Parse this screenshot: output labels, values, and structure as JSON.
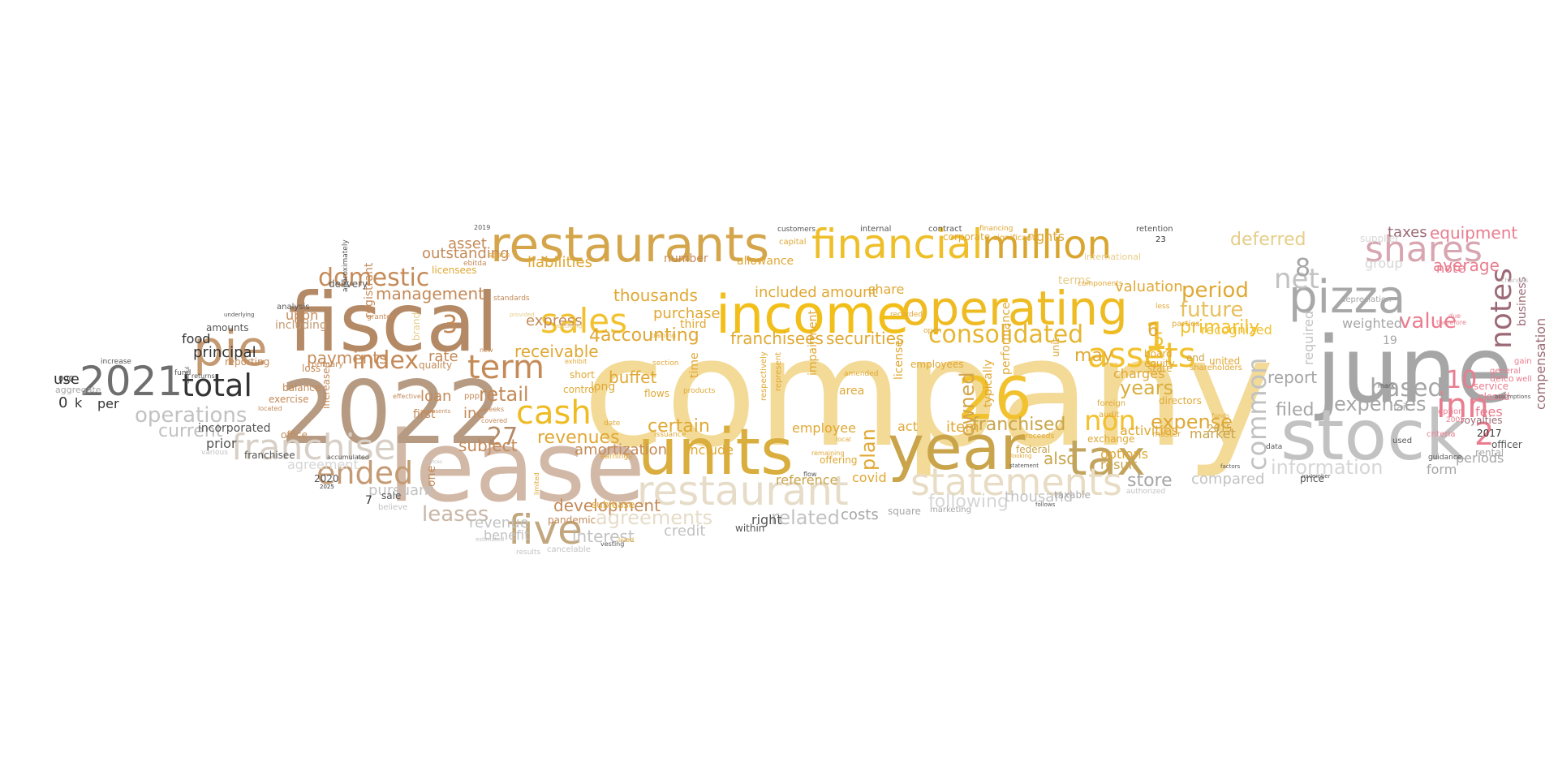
{
  "palette": {
    "background": "#ffffff",
    "gold": "#f2c12e",
    "light_gold": "#f3da96",
    "mustard": "#d4a63a",
    "tan": "#c9a27a",
    "brown": "#b48a66",
    "beige": "#e6dcc8",
    "gray": "#a6a6a6",
    "dark": "#333333",
    "pink": "#e97d8f",
    "mauve": "#9b6a76"
  },
  "words": [
    {
      "text": "company",
      "color": "#f3da96"
    },
    {
      "text": "lease",
      "color": "#d2b8a6"
    },
    {
      "text": "2022",
      "color": "#b69a82"
    },
    {
      "text": "fiscal",
      "color": "#b48a66"
    },
    {
      "text": "income",
      "color": "#f2bf1a"
    },
    {
      "text": "june",
      "color": "#a6a6a6"
    },
    {
      "text": "stock",
      "color": "#c2c2c2"
    },
    {
      "text": "units",
      "color": "#d9ae3e"
    },
    {
      "text": "year",
      "color": "#c9a44a"
    },
    {
      "text": "restaurants",
      "color": "#d4a54a"
    },
    {
      "text": "financial",
      "color": "#efbf2a"
    },
    {
      "text": "million",
      "color": "#d9a52e"
    },
    {
      "text": "operating",
      "color": "#efbb22"
    },
    {
      "text": "restaurant",
      "color": "#e6dcc8"
    },
    {
      "text": "pizza",
      "color": "#a8a8a8"
    },
    {
      "text": "tax",
      "color": "#c3a45e"
    },
    {
      "text": "26",
      "color": "#f2c12e"
    },
    {
      "text": "statements",
      "color": "#e8dcc4"
    },
    {
      "text": "pie",
      "color": "#c49a72"
    },
    {
      "text": "franchise",
      "color": "#d8d0c6"
    },
    {
      "text": "2021",
      "color": "#6e6e6e"
    },
    {
      "text": "five",
      "color": "#c2a77e"
    },
    {
      "text": "shares",
      "color": "#d7a6b0"
    },
    {
      "text": "cash",
      "color": "#efbb22"
    },
    {
      "text": "sales",
      "color": "#f2c12e"
    },
    {
      "text": "assets",
      "color": "#f2c12e"
    },
    {
      "text": "consolidated",
      "color": "#e6b630"
    },
    {
      "text": "total",
      "color": "#333333"
    },
    {
      "text": "term",
      "color": "#c48a58"
    },
    {
      "text": "ended",
      "color": "#c49a72"
    },
    {
      "text": "domestic",
      "color": "#c48a58"
    },
    {
      "text": "index",
      "color": "#c48a58"
    },
    {
      "text": "inn",
      "color": "#e97d8f"
    },
    {
      "text": "notes",
      "color": "#9b6a76"
    },
    {
      "text": "net",
      "color": "#c2c2c2"
    },
    {
      "text": "deferred",
      "color": "#e6cd8a"
    },
    {
      "text": "operations",
      "color": "#c2c2c2"
    },
    {
      "text": "leases",
      "color": "#c9b6a6"
    },
    {
      "text": "revenues",
      "color": "#e0a834"
    },
    {
      "text": "period",
      "color": "#e0a834"
    },
    {
      "text": "future",
      "color": "#e8c060"
    },
    {
      "text": "primarily",
      "color": "#f2c12e"
    },
    {
      "text": "common",
      "color": "#c2c2c2"
    },
    {
      "text": "information",
      "color": "#d6d6d6"
    },
    {
      "text": "expenses",
      "color": "#a6a6a6"
    },
    {
      "text": "value",
      "color": "#e97d8f"
    },
    {
      "text": "based",
      "color": "#a6a6a6"
    },
    {
      "text": "equipment",
      "color": "#e97d8f"
    },
    {
      "text": "average",
      "color": "#e97d8f"
    },
    {
      "text": "expense",
      "color": "#e0a834"
    },
    {
      "text": "years",
      "color": "#d9ae3e"
    },
    {
      "text": "non",
      "color": "#f2c12e"
    },
    {
      "text": "filed",
      "color": "#a6a6a6"
    },
    {
      "text": "report",
      "color": "#a6a6a6"
    },
    {
      "text": "owned",
      "color": "#d4a54a"
    },
    {
      "text": "franchised",
      "color": "#c9a44a"
    },
    {
      "text": "agreements",
      "color": "#e6dcc8"
    },
    {
      "text": "accounting",
      "color": "#e0a834"
    },
    {
      "text": "thousands",
      "color": "#e0a834"
    },
    {
      "text": "certain",
      "color": "#e0a834"
    },
    {
      "text": "management",
      "color": "#c48a58"
    },
    {
      "text": "payments",
      "color": "#c48a58"
    },
    {
      "text": "current",
      "color": "#c2c2c2"
    },
    {
      "text": "retail",
      "color": "#c48a58"
    },
    {
      "text": "27",
      "color": "#b48a66"
    },
    {
      "text": "1",
      "color": "#f2c12e"
    },
    {
      "text": "2",
      "color": "#e97d8f"
    },
    {
      "text": "3",
      "color": "#c48a58"
    },
    {
      "text": "4",
      "color": "#e0a834"
    },
    {
      "text": "5",
      "color": "#f2c12e"
    },
    {
      "text": "6",
      "color": "#e0a834"
    },
    {
      "text": "8",
      "color": "#a6a6a6"
    },
    {
      "text": "10",
      "color": "#e97d8f"
    },
    {
      "text": "securities",
      "color": "#e0a834"
    },
    {
      "text": "franchisees",
      "color": "#e0a834"
    },
    {
      "text": "may",
      "color": "#e0a834"
    },
    {
      "text": "store",
      "color": "#a6a6a6"
    },
    {
      "text": "compared",
      "color": "#c2c2c2"
    },
    {
      "text": "following",
      "color": "#d6d6d6"
    },
    {
      "text": "thousand",
      "color": "#c2c2c2"
    },
    {
      "text": "related",
      "color": "#c2c2c2"
    },
    {
      "text": "costs",
      "color": "#a6a6a6"
    },
    {
      "text": "plan",
      "color": "#e0a834"
    },
    {
      "text": "interest",
      "color": "#c2c2c2"
    },
    {
      "text": "credit",
      "color": "#c2c2c2"
    },
    {
      "text": "development",
      "color": "#c48a58"
    },
    {
      "text": "amortization",
      "color": "#c48a58"
    },
    {
      "text": "subject",
      "color": "#c48a58"
    },
    {
      "text": "receivable",
      "color": "#e0a834"
    },
    {
      "text": "buffet",
      "color": "#e0a834"
    },
    {
      "text": "outstanding",
      "color": "#c48a58"
    },
    {
      "text": "asset",
      "color": "#c48a58"
    },
    {
      "text": "liabilities",
      "color": "#e0a834"
    },
    {
      "text": "rate",
      "color": "#c48a58"
    },
    {
      "text": "loan",
      "color": "#c48a58"
    },
    {
      "text": "inc",
      "color": "#c48a58"
    },
    {
      "text": "express",
      "color": "#c48a58"
    },
    {
      "text": "purchase",
      "color": "#e0a834"
    },
    {
      "text": "included",
      "color": "#e0a834"
    },
    {
      "text": "amount",
      "color": "#e0a834"
    },
    {
      "text": "share",
      "color": "#e0a834"
    },
    {
      "text": "recognized",
      "color": "#f2c12e"
    },
    {
      "text": "valuation",
      "color": "#e0a834"
    },
    {
      "text": "charges",
      "color": "#e0a834"
    },
    {
      "text": "activities",
      "color": "#e0a834"
    },
    {
      "text": "options",
      "color": "#e0a834"
    },
    {
      "text": "result",
      "color": "#c9a44a"
    },
    {
      "text": "also",
      "color": "#c9a44a"
    },
    {
      "text": "market",
      "color": "#c9a44a"
    },
    {
      "text": "rights",
      "color": "#e0a834"
    },
    {
      "text": "terms",
      "color": "#e6cd8a"
    },
    {
      "text": "item",
      "color": "#e0a834"
    },
    {
      "text": "act",
      "color": "#e0a834"
    },
    {
      "text": "employee",
      "color": "#e0a834"
    },
    {
      "text": "reference",
      "color": "#c9a44a"
    },
    {
      "text": "covid",
      "color": "#e0a834"
    },
    {
      "text": "include",
      "color": "#e0a834"
    },
    {
      "text": "right",
      "color": "#555555"
    },
    {
      "text": "agreement",
      "color": "#d6d6d6"
    },
    {
      "text": "pursuant",
      "color": "#c2c2c2"
    },
    {
      "text": "revenue",
      "color": "#c2c2c2"
    },
    {
      "text": "benefit",
      "color": "#c2c2c2"
    },
    {
      "text": "taxes",
      "color": "#9b6a76"
    },
    {
      "text": "group",
      "color": "#d6d6d6"
    },
    {
      "text": "weighted",
      "color": "#a6a6a6"
    },
    {
      "text": "note",
      "color": "#e97d8f"
    },
    {
      "text": "fees",
      "color": "#e97d8f"
    },
    {
      "text": "form",
      "color": "#a6a6a6"
    },
    {
      "text": "periods",
      "color": "#a6a6a6"
    },
    {
      "text": "compensation",
      "color": "#9b6a76"
    },
    {
      "text": "royalties",
      "color": "#9b6a76"
    },
    {
      "text": "rental",
      "color": "#a6a6a6"
    },
    {
      "text": "closed",
      "color": "#e97d8f"
    },
    {
      "text": "service",
      "color": "#e97d8f"
    },
    {
      "text": "2017",
      "color": "#333333"
    },
    {
      "text": "upon",
      "color": "#c48a58"
    },
    {
      "text": "including",
      "color": "#c49a72"
    },
    {
      "text": "principal",
      "color": "#333333"
    },
    {
      "text": "food",
      "color": "#333333"
    },
    {
      "text": "use",
      "color": "#333333"
    },
    {
      "text": "per",
      "color": "#333333"
    },
    {
      "text": "0",
      "color": "#333333"
    },
    {
      "text": "k",
      "color": "#333333"
    },
    {
      "text": "prior",
      "color": "#555555"
    },
    {
      "text": "incorporated",
      "color": "#555555"
    },
    {
      "text": "exercise",
      "color": "#c48a58"
    },
    {
      "text": "registrant",
      "color": "#c48a58"
    },
    {
      "text": "delivery",
      "color": "#555555"
    },
    {
      "text": "amounts",
      "color": "#555555"
    },
    {
      "text": "analysis",
      "color": "#555555"
    },
    {
      "text": "franchisee",
      "color": "#555555"
    },
    {
      "text": "office",
      "color": "#c48a58"
    },
    {
      "text": "2020",
      "color": "#555555"
    },
    {
      "text": "sale",
      "color": "#555555"
    },
    {
      "text": "7",
      "color": "#333333"
    },
    {
      "text": "number",
      "color": "#c48a58"
    },
    {
      "text": "allowance",
      "color": "#e0a834"
    },
    {
      "text": "licensees",
      "color": "#e0a834"
    },
    {
      "text": "supplier",
      "color": "#d6d6d6"
    },
    {
      "text": "price",
      "color": "#555555"
    },
    {
      "text": "taxable",
      "color": "#a6a6a6"
    },
    {
      "text": "sublease",
      "color": "#e0a834"
    },
    {
      "text": "pandemic",
      "color": "#c48a58"
    },
    {
      "text": "short",
      "color": "#e0a834"
    },
    {
      "text": "long",
      "color": "#e0a834"
    },
    {
      "text": "first",
      "color": "#c48a58"
    },
    {
      "text": "one",
      "color": "#c48a58"
    },
    {
      "text": "quality",
      "color": "#c48a58"
    },
    {
      "text": "brand",
      "color": "#e6cd8a"
    },
    {
      "text": "reporting",
      "color": "#c48a58"
    },
    {
      "text": "balance",
      "color": "#c48a58"
    },
    {
      "text": "loss",
      "color": "#c48a58"
    },
    {
      "text": "primary",
      "color": "#c48a58"
    },
    {
      "text": "increased",
      "color": "#c48a58"
    },
    {
      "text": "federal",
      "color": "#c9a44a"
    },
    {
      "text": "equity",
      "color": "#e0a834"
    },
    {
      "text": "board",
      "color": "#e0a834"
    },
    {
      "text": "directors",
      "color": "#e0a834"
    },
    {
      "text": "state",
      "color": "#e0a834"
    },
    {
      "text": "united",
      "color": "#e0a834"
    },
    {
      "text": "end",
      "color": "#c9a44a"
    },
    {
      "text": "2015",
      "color": "#c9a44a"
    },
    {
      "text": "shareholders",
      "color": "#e0a834"
    },
    {
      "text": "exchange",
      "color": "#e0a834"
    },
    {
      "text": "performance",
      "color": "#e0a834"
    },
    {
      "text": "license",
      "color": "#e0a834"
    },
    {
      "text": "impairment",
      "color": "#e0a834"
    },
    {
      "text": "employees",
      "color": "#e0a834"
    },
    {
      "text": "area",
      "color": "#e0a834"
    },
    {
      "text": "time",
      "color": "#e0a834"
    },
    {
      "text": "within",
      "color": "#555555"
    },
    {
      "text": "typically",
      "color": "#e0a834"
    },
    {
      "text": "unit",
      "color": "#e0a834"
    },
    {
      "text": "control",
      "color": "#e0a834"
    },
    {
      "text": "flows",
      "color": "#e0a834"
    },
    {
      "text": "square",
      "color": "#a6a6a6"
    },
    {
      "text": "marketing",
      "color": "#a6a6a6"
    },
    {
      "text": "offering",
      "color": "#e0a834"
    },
    {
      "text": "third",
      "color": "#e0a834"
    },
    {
      "text": "financing",
      "color": "#e0a834"
    },
    {
      "text": "retention",
      "color": "#555555"
    },
    {
      "text": "corporate",
      "color": "#e0a834"
    },
    {
      "text": "significant",
      "color": "#e0a834"
    },
    {
      "text": "internal",
      "color": "#555555"
    },
    {
      "text": "contract",
      "color": "#555555"
    },
    {
      "text": "customers",
      "color": "#555555"
    },
    {
      "text": "capital",
      "color": "#e0a834"
    },
    {
      "text": "international",
      "color": "#e6cd8a"
    },
    {
      "text": "ppp",
      "color": "#c48a58"
    },
    {
      "text": "000",
      "color": "#333333"
    },
    {
      "text": "increase",
      "color": "#555555"
    },
    {
      "text": "fund",
      "color": "#555555"
    },
    {
      "text": "returns",
      "color": "#555555"
    },
    {
      "text": "aggregate",
      "color": "#a6a6a6"
    },
    {
      "text": "guidance",
      "color": "#555555"
    },
    {
      "text": "officer",
      "color": "#555555"
    },
    {
      "text": "delco",
      "color": "#e97d8f"
    },
    {
      "text": "general",
      "color": "#e97d8f"
    },
    {
      "text": "gain",
      "color": "#e97d8f"
    },
    {
      "text": "well",
      "color": "#e97d8f"
    },
    {
      "text": "business",
      "color": "#9b6a76"
    },
    {
      "text": "required",
      "color": "#c2c2c2"
    },
    {
      "text": "depreciation",
      "color": "#a6a6a6"
    },
    {
      "text": "criteria",
      "color": "#e97d8f"
    },
    {
      "text": "option",
      "color": "#e97d8f"
    },
    {
      "text": "used",
      "color": "#555555"
    },
    {
      "text": "19",
      "color": "#a6a6a6"
    },
    {
      "text": "23",
      "color": "#333333"
    },
    {
      "text": "cancelable",
      "color": "#c2c2c2"
    },
    {
      "text": "results",
      "color": "#c2c2c2"
    },
    {
      "text": "vesting",
      "color": "#555555"
    },
    {
      "text": "believe",
      "color": "#c2c2c2"
    },
    {
      "text": "authorized",
      "color": "#c2c2c2"
    },
    {
      "text": "audit",
      "color": "#e0a834"
    },
    {
      "text": "master",
      "color": "#e0a834"
    },
    {
      "text": "foreign",
      "color": "#e0a834"
    },
    {
      "text": "parties",
      "color": "#e0a834"
    },
    {
      "text": "less",
      "color": "#e0a834"
    },
    {
      "text": "products",
      "color": "#e0a834"
    },
    {
      "text": "represent",
      "color": "#e0a834"
    },
    {
      "text": "respectively",
      "color": "#e0a834"
    },
    {
      "text": "date",
      "color": "#e0a834"
    },
    {
      "text": "section",
      "color": "#e0a834"
    },
    {
      "text": "earnings",
      "color": "#e0a834"
    },
    {
      "text": "issuance",
      "color": "#e0a834"
    },
    {
      "text": "amended",
      "color": "#e0a834"
    },
    {
      "text": "remaining",
      "color": "#e0a834"
    },
    {
      "text": "local",
      "color": "#e0a834"
    },
    {
      "text": "open",
      "color": "#e0a834"
    },
    {
      "text": "recorded",
      "color": "#e0a834"
    },
    {
      "text": "proceeds",
      "color": "#e0a834"
    },
    {
      "text": "fair",
      "color": "#a6a6a6"
    },
    {
      "text": "components",
      "color": "#e0a834"
    },
    {
      "text": "standards",
      "color": "#c48a58"
    },
    {
      "text": "granted",
      "color": "#c48a58"
    },
    {
      "text": "space",
      "color": "#e0a834"
    },
    {
      "text": "ebitda",
      "color": "#c48a58"
    },
    {
      "text": "covered",
      "color": "#c48a58"
    },
    {
      "text": "approximately",
      "color": "#555555"
    },
    {
      "text": "underlying",
      "color": "#555555"
    },
    {
      "text": "useful",
      "color": "#555555"
    },
    {
      "text": "located",
      "color": "#c48a58"
    },
    {
      "text": "represents",
      "color": "#c48a58"
    },
    {
      "text": "various",
      "color": "#c2c2c2"
    },
    {
      "text": "effective",
      "color": "#c48a58"
    },
    {
      "text": "accumulated",
      "color": "#555555"
    },
    {
      "text": "limited",
      "color": "#e0a834"
    },
    {
      "text": "new",
      "color": "#c48a58"
    },
    {
      "text": "weeks",
      "color": "#c48a58"
    },
    {
      "text": "lived",
      "color": "#e0a834"
    },
    {
      "text": "training",
      "color": "#e0a834"
    },
    {
      "text": "flow",
      "color": "#555555"
    },
    {
      "text": "2019",
      "color": "#555555"
    },
    {
      "text": "2005",
      "color": "#e97d8f"
    },
    {
      "text": "assumptions",
      "color": "#555555"
    },
    {
      "text": "changes",
      "color": "#c2c2c2"
    },
    {
      "text": "november",
      "color": "#555555"
    },
    {
      "text": "data",
      "color": "#555555"
    },
    {
      "text": "mark",
      "color": "#555555"
    },
    {
      "text": "due",
      "color": "#e97d8f"
    },
    {
      "text": "therefore",
      "color": "#e97d8f"
    },
    {
      "text": "factors",
      "color": "#555555"
    },
    {
      "text": "funds",
      "color": "#e0a834"
    },
    {
      "text": "statement",
      "color": "#555555"
    },
    {
      "text": "follows",
      "color": "#555555"
    },
    {
      "text": "looking",
      "color": "#e0a834"
    },
    {
      "text": "exhibit",
      "color": "#e0a834"
    },
    {
      "text": "estimated",
      "color": "#c2c2c2"
    },
    {
      "text": "sources",
      "color": "#c2c2c2"
    },
    {
      "text": "existing",
      "color": "#e6cd8a"
    },
    {
      "text": "provided",
      "color": "#e6cd8a"
    },
    {
      "text": "2025",
      "color": "#333333"
    }
  ]
}
